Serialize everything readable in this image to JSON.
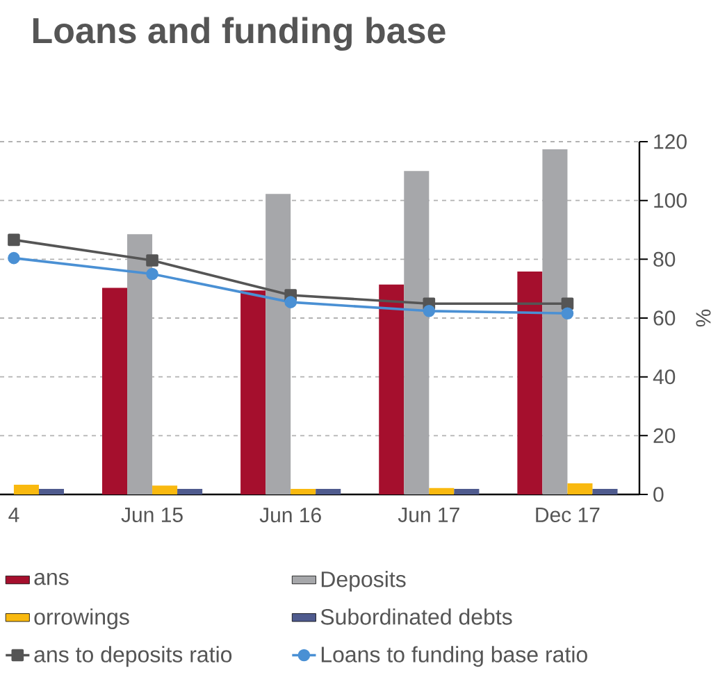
{
  "chart_data": {
    "type": "bar",
    "title": "Loans and funding base",
    "ylabel": "%",
    "categories": [
      "4",
      "Jun 15",
      "Jun 16",
      "Jun 17",
      "Dec 17"
    ],
    "series": [
      {
        "name": "ans",
        "type": "bar",
        "color": "#a50f2d",
        "values": [
          null,
          70.3,
          69.4,
          71.4,
          75.8
        ]
      },
      {
        "name": "Deposits",
        "type": "bar",
        "color": "#a6a7aa",
        "values": [
          null,
          88.5,
          102.2,
          110,
          117.4
        ]
      },
      {
        "name": "orrowings",
        "type": "bar",
        "color": "#f9b90f",
        "values": [
          3.3,
          3.0,
          1.9,
          2.2,
          3.8
        ]
      },
      {
        "name": "Subordinated debts",
        "type": "bar",
        "color": "#4f5b8e",
        "values": [
          1.9,
          1.9,
          1.9,
          1.9,
          1.9
        ]
      },
      {
        "name": "ans to deposits ratio",
        "type": "line",
        "color": "#555555",
        "marker": "square",
        "values": [
          86.6,
          79.6,
          67.8,
          64.9,
          64.9
        ]
      },
      {
        "name": "Loans to funding base ratio",
        "type": "line",
        "color": "#4a90d4",
        "marker": "circle",
        "values": [
          80.4,
          75.0,
          65.4,
          62.4,
          61.6
        ]
      }
    ],
    "ylim": [
      0,
      120
    ],
    "yticks": [
      0,
      20,
      40,
      60,
      80,
      100,
      120
    ],
    "grid": "y",
    "legend": "bottom"
  }
}
